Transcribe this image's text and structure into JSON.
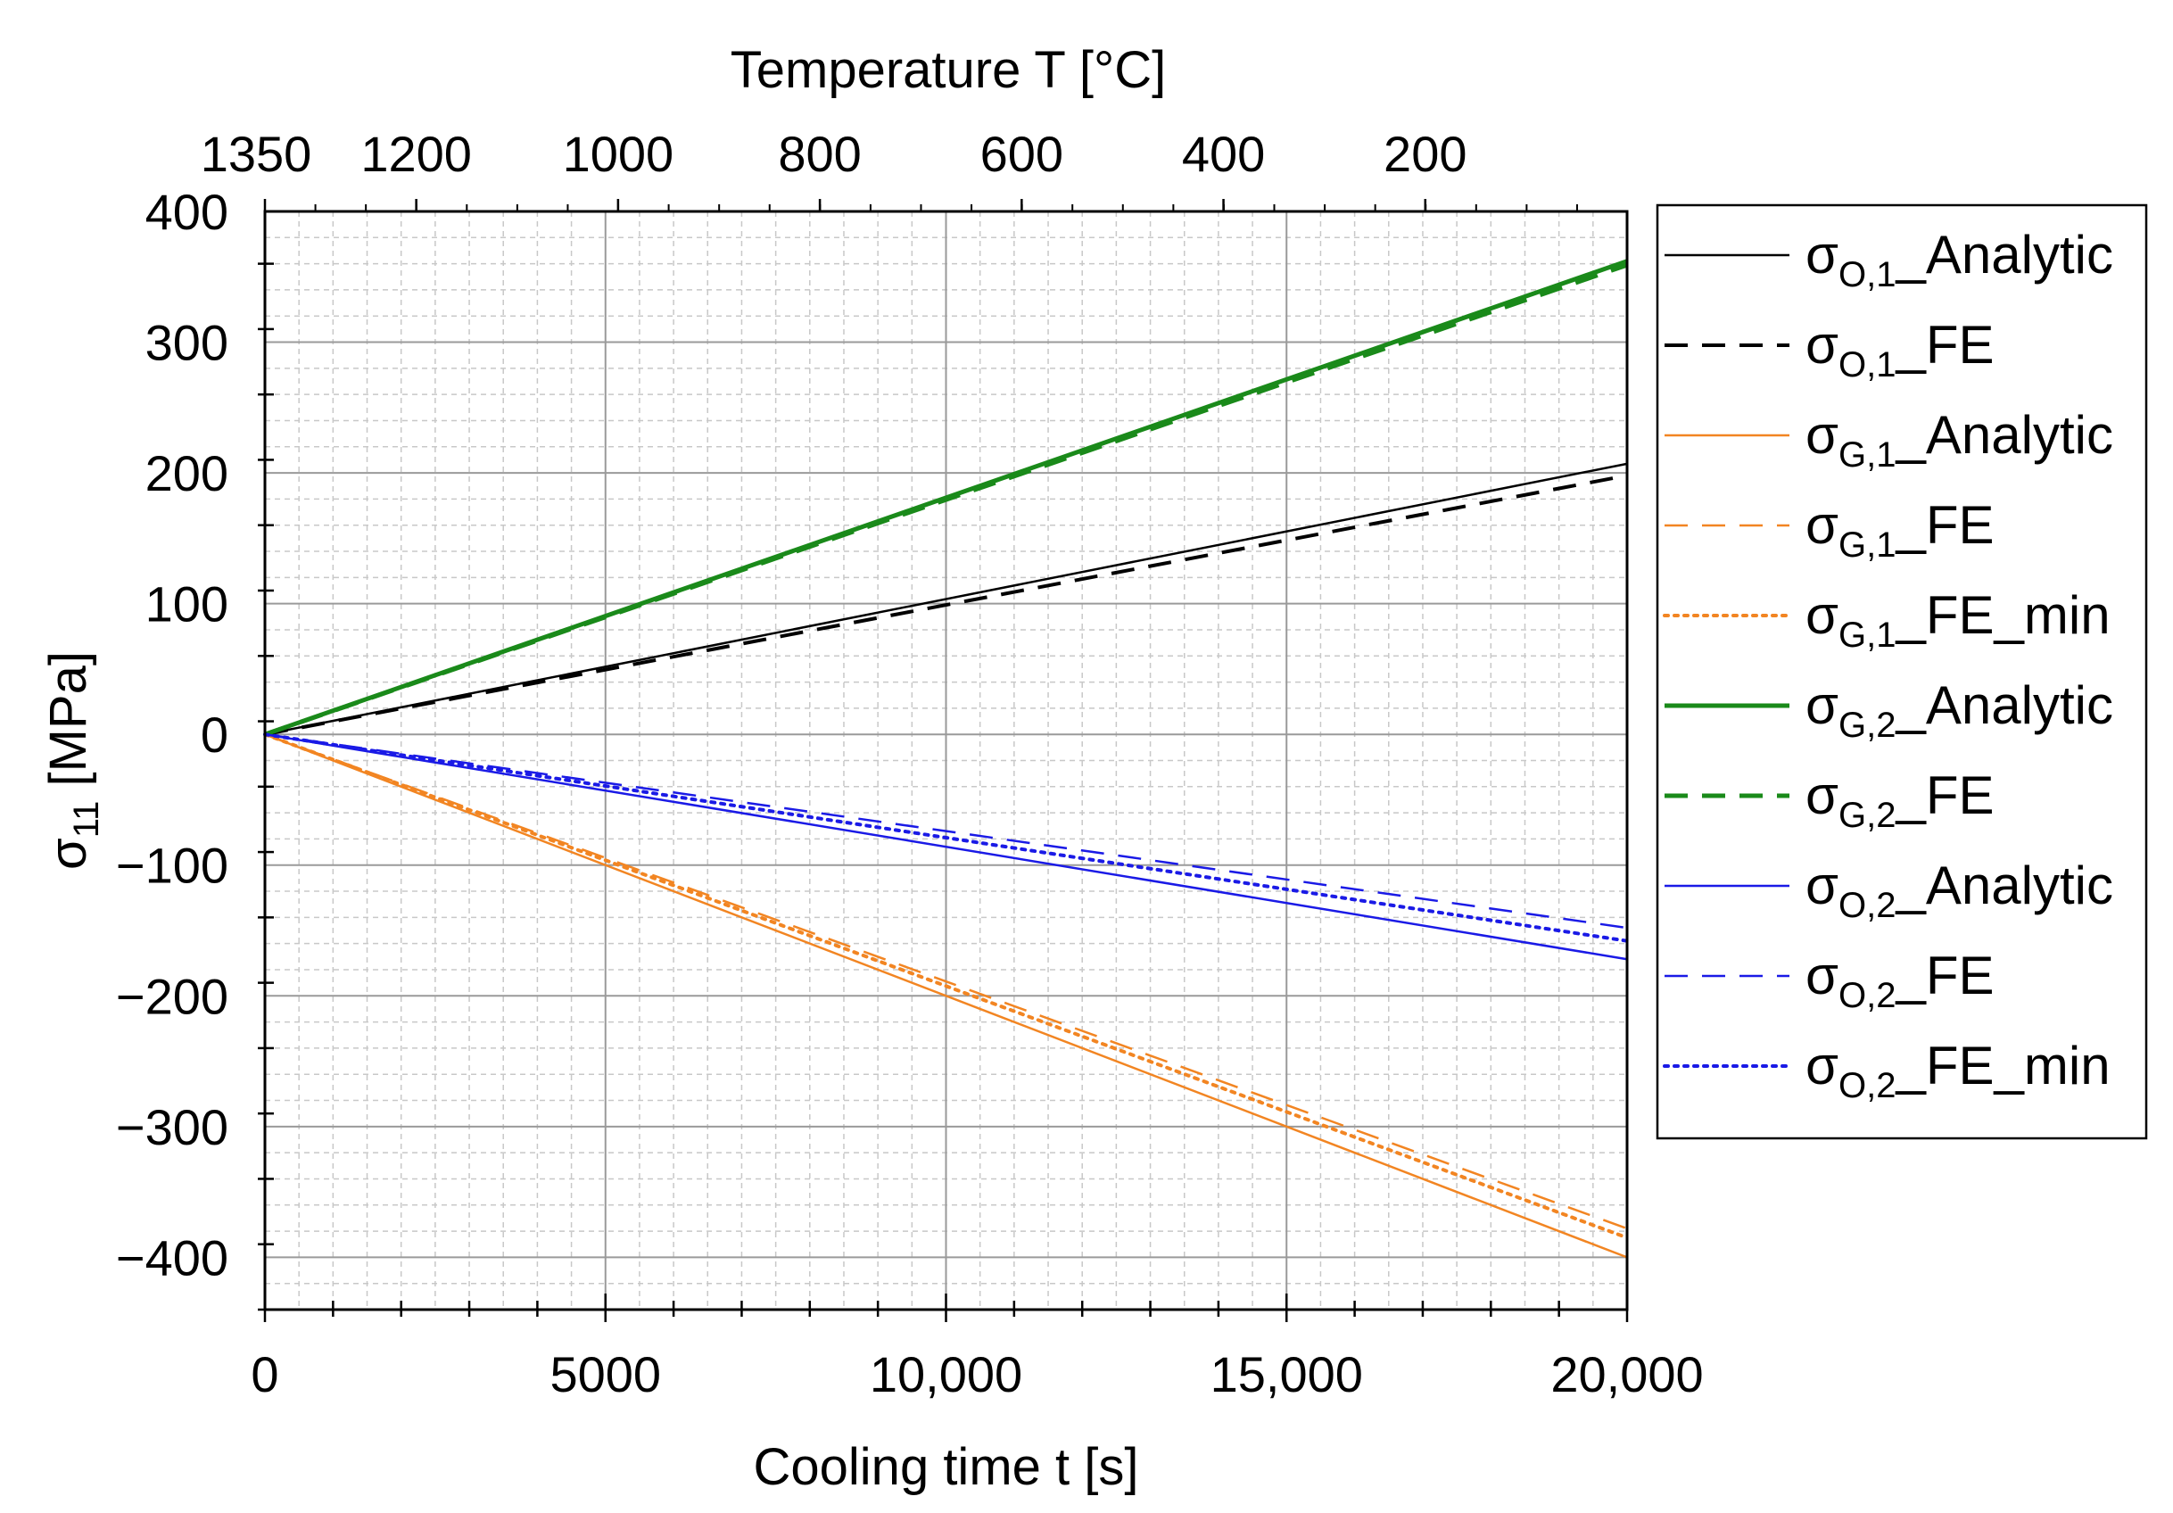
{
  "chart_data": {
    "type": "line",
    "title": "",
    "xlabel": "Cooling time t [s]",
    "ylabel": "σ₁₁ [MPa]",
    "ylabel_parts": {
      "sym": "σ",
      "sub": "11",
      "unit": " [MPa]"
    },
    "x2label": "Temperature T [°C]",
    "xlim": [
      0,
      20000
    ],
    "ylim": [
      -440,
      400
    ],
    "grid": true,
    "legend_position": "right-outside",
    "x_ticks": [
      {
        "value": 0,
        "label": "0"
      },
      {
        "value": 5000,
        "label": "5000"
      },
      {
        "value": 10000,
        "label": "10,000"
      },
      {
        "value": 15000,
        "label": "15,000"
      },
      {
        "value": 20000,
        "label": "20,000"
      }
    ],
    "y_ticks": [
      {
        "value": 400,
        "label": "400"
      },
      {
        "value": 300,
        "label": "300"
      },
      {
        "value": 200,
        "label": "200"
      },
      {
        "value": 100,
        "label": "100"
      },
      {
        "value": 0,
        "label": "0"
      },
      {
        "value": -100,
        "label": "−100"
      },
      {
        "value": -200,
        "label": "−200"
      },
      {
        "value": -300,
        "label": "−300"
      },
      {
        "value": -400,
        "label": "−400"
      }
    ],
    "x2_ticks": [
      {
        "value": 0,
        "label": "1350"
      },
      {
        "value": 2222,
        "label": "1200"
      },
      {
        "value": 5185,
        "label": "1000"
      },
      {
        "value": 8148,
        "label": "800"
      },
      {
        "value": 11111,
        "label": "600"
      },
      {
        "value": 14074,
        "label": "400"
      },
      {
        "value": 17037,
        "label": "200"
      }
    ],
    "series": [
      {
        "name": "Analytic",
        "sym": "σ",
        "sub": "O,1",
        "suffix": "_Analytic",
        "color": "#000000",
        "style": "solid",
        "width": 2.5,
        "x": [
          0,
          20000
        ],
        "y": [
          0,
          207
        ]
      },
      {
        "name": "FE",
        "sym": "σ",
        "sub": "O,1",
        "suffix": "_FE",
        "color": "#000000",
        "style": "dash",
        "width": 4,
        "x": [
          0,
          20000
        ],
        "y": [
          0,
          198
        ]
      },
      {
        "name": "Analytic",
        "sym": "σ",
        "sub": "G,1",
        "suffix": "_Analytic",
        "color": "#F28522",
        "style": "solid",
        "width": 2.5,
        "x": [
          0,
          20000
        ],
        "y": [
          0,
          -400
        ]
      },
      {
        "name": "FE",
        "sym": "σ",
        "sub": "G,1",
        "suffix": "_FE",
        "color": "#F28522",
        "style": "dash",
        "width": 2.5,
        "x": [
          0,
          20000
        ],
        "y": [
          0,
          -378
        ]
      },
      {
        "name": "FE_min",
        "sym": "σ",
        "sub": "G,1",
        "suffix": "_FE_min",
        "color": "#F28522",
        "style": "dot",
        "width": 4,
        "x": [
          0,
          20000
        ],
        "y": [
          0,
          -385
        ]
      },
      {
        "name": "Analytic",
        "sym": "σ",
        "sub": "G,2",
        "suffix": "_Analytic",
        "color": "#1A8A1A",
        "style": "solid",
        "width": 5,
        "x": [
          0,
          20000
        ],
        "y": [
          0,
          362
        ]
      },
      {
        "name": "FE",
        "sym": "σ",
        "sub": "G,2",
        "suffix": "_FE",
        "color": "#1A8A1A",
        "style": "dash",
        "width": 5,
        "x": [
          0,
          20000
        ],
        "y": [
          0,
          359
        ]
      },
      {
        "name": "Analytic",
        "sym": "σ",
        "sub": "O,2",
        "suffix": "_Analytic",
        "color": "#1A1AE6",
        "style": "solid",
        "width": 2.5,
        "x": [
          0,
          20000
        ],
        "y": [
          0,
          -172
        ]
      },
      {
        "name": "FE",
        "sym": "σ",
        "sub": "O,2",
        "suffix": "_FE",
        "color": "#1A1AE6",
        "style": "dash",
        "width": 2.5,
        "x": [
          0,
          20000
        ],
        "y": [
          0,
          -148
        ]
      },
      {
        "name": "FE_min",
        "sym": "σ",
        "sub": "O,2",
        "suffix": "_FE_min",
        "color": "#1A1AE6",
        "style": "dot",
        "width": 4,
        "x": [
          0,
          20000
        ],
        "y": [
          0,
          -158
        ]
      }
    ]
  }
}
